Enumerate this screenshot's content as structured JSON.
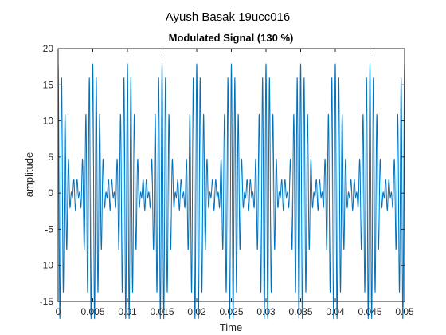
{
  "figure": {
    "suptitle": "Ayush Basak 19ucc016"
  },
  "chart_data": {
    "type": "line",
    "title": "Modulated Signal (130 %)",
    "xlabel": "Time",
    "ylabel": "amplitude",
    "xlim": [
      0,
      0.05
    ],
    "ylim": [
      -15,
      20
    ],
    "xticks": [
      0,
      0.005,
      0.01,
      0.015,
      0.02,
      0.025,
      0.03,
      0.035,
      0.04,
      0.045,
      0.05
    ],
    "xtick_labels": [
      "0",
      "0.005",
      "0.01",
      "0.015",
      "0.02",
      "0.025",
      "0.03",
      "0.035",
      "0.04",
      "0.045",
      "0.05"
    ],
    "yticks": [
      -15,
      -10,
      -5,
      0,
      5,
      10,
      15,
      20
    ],
    "ytick_labels": [
      "-15",
      "-10",
      "-5",
      "0",
      "5",
      "10",
      "15",
      "20"
    ],
    "grid": false,
    "colors": {
      "line": "#0072bd",
      "axes": "#262626"
    },
    "series": [
      {
        "signal": {
          "carrier_amplitude": 7.8,
          "modulation_index": 1.3,
          "message_frequency_hz": 200,
          "carrier_frequency_hz": 2000,
          "message_phase": "cosine",
          "carrier_phase": "cosine"
        }
      }
    ]
  }
}
